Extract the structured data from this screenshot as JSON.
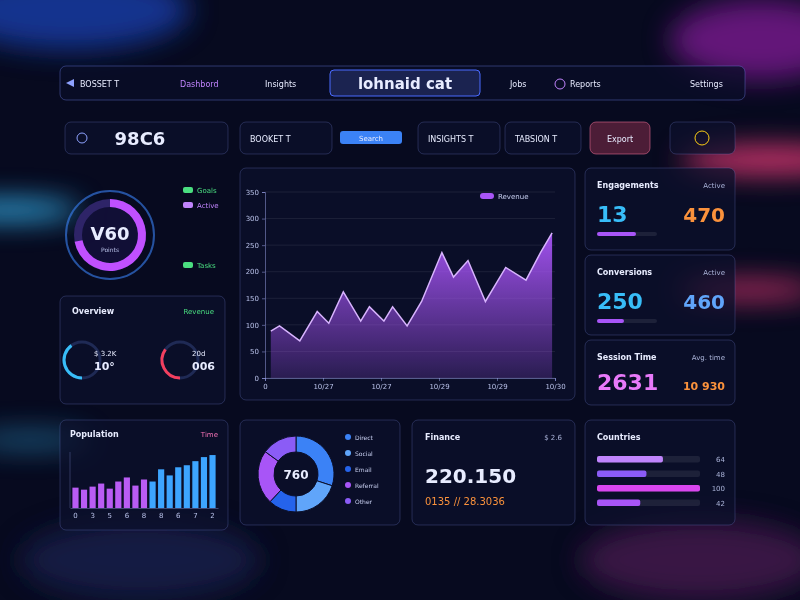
{
  "header": {
    "brand": "BOSSET T",
    "nav": [
      "Dashbord",
      "Insights"
    ],
    "title": "lohnaid cat",
    "links": [
      "Jobs",
      "Reports",
      "Settings"
    ]
  },
  "toolbar": {
    "kpi": "98C6",
    "items": [
      "BOOKET T",
      "INSIGHTS T",
      "TABSION T"
    ],
    "search": "Search",
    "export": "Export"
  },
  "ring": {
    "value": "V60",
    "label": "Points",
    "percent": 72,
    "tags": [
      "Goals",
      "Active",
      "Tasks"
    ]
  },
  "overview": {
    "title": "Overview",
    "tag": "Revenue",
    "gauges": [
      {
        "top": "$ 3.2K",
        "bottom": "10°",
        "percent": 40,
        "color": "#38bdf8"
      },
      {
        "top": "20d",
        "bottom": "006",
        "percent": 35,
        "color": "#f43f5e"
      }
    ]
  },
  "stats": [
    {
      "title": "Engagements",
      "tag": "Active",
      "values": [
        13,
        470
      ],
      "colors": [
        "#38bdf8",
        "#fb923c"
      ],
      "progress": 65
    },
    {
      "title": "Conversions",
      "tag": "Active",
      "values": [
        250,
        460
      ],
      "colors": [
        "#38bdf8",
        "#60a5fa"
      ],
      "progress": 45
    },
    {
      "title": "Session Time",
      "tag": "Avg. time",
      "values": [
        2631,
        "10 930"
      ],
      "colors": [
        "#e879f9",
        "#fb923c"
      ]
    }
  ],
  "finance": {
    "title": "Finance",
    "tag": "$ 2.6",
    "value": "220.150",
    "detail": "0135 // 28.3036"
  },
  "chart_data": [
    {
      "type": "area",
      "x": [
        2,
        5,
        12,
        18,
        22,
        27,
        33,
        36,
        41,
        44,
        49,
        54,
        61,
        65,
        70,
        76,
        83,
        90,
        95,
        99
      ],
      "series": [
        {
          "name": "Revenue",
          "color": "#a855f7",
          "values": [
            88,
            98,
            70,
            125,
            103,
            162,
            107,
            134,
            107,
            134,
            98,
            144,
            236,
            190,
            221,
            144,
            208,
            184,
            236,
            273
          ]
        }
      ],
      "xlim": [
        0,
        100
      ],
      "xticks": [
        0,
        {
          "value": 20,
          "label": "10/27"
        },
        {
          "value": 40,
          "label": "10/27"
        },
        {
          "value": 60,
          "label": "10/29"
        },
        {
          "value": 80,
          "label": "10/29"
        },
        {
          "value": 100,
          "label": "10/30"
        }
      ],
      "ylim": [
        0,
        350
      ],
      "yticks": [
        0,
        50,
        100,
        150,
        200,
        250,
        300,
        350
      ],
      "grid": true,
      "legend": "top-right"
    },
    {
      "type": "bar",
      "title": "Population",
      "subtitle": "Time",
      "categories": [
        "0",
        null,
        "3",
        null,
        "5",
        null,
        "6",
        null,
        "8",
        null,
        "8",
        null,
        "6",
        null,
        "7",
        null,
        "2"
      ],
      "values": [
        20,
        18,
        21,
        24,
        19,
        26,
        30,
        22,
        28,
        26,
        38,
        32,
        40,
        42,
        46,
        50,
        52
      ],
      "colors": [
        "#b95cf4",
        "#b95cf4",
        "#b95cf4",
        "#b95cf4",
        "#b95cf4",
        "#b95cf4",
        "#b95cf4",
        "#b95cf4",
        "#b95cf4",
        "#3da5ff",
        "#3da5ff",
        "#3da5ff",
        "#3da5ff",
        "#3da5ff",
        "#3da5ff",
        "#3da5ff",
        "#3da5ff"
      ],
      "ylim": [
        0,
        55
      ],
      "tick_labels": "x"
    },
    {
      "type": "pie",
      "annotation": "760",
      "categories": [
        "Direct",
        "Social",
        "Email",
        "Referral",
        "Other"
      ],
      "values": [
        30,
        20,
        12,
        23,
        15
      ],
      "colors": [
        "#3b82f6",
        "#60a5fa",
        "#2563eb",
        "#a855f7",
        "#8b5cf6"
      ],
      "legend": "right"
    },
    {
      "type": "bar",
      "orientation": "horizontal",
      "title": "Countries",
      "categories": [
        null,
        null,
        null,
        null
      ],
      "values": [
        64,
        48,
        100,
        42
      ],
      "colors": [
        "#c084fc",
        "#8b5cf6",
        "#d946ef",
        "#a855f7"
      ],
      "xlim": [
        0,
        100
      ],
      "tick_labels": false,
      "data_labels": true
    }
  ]
}
